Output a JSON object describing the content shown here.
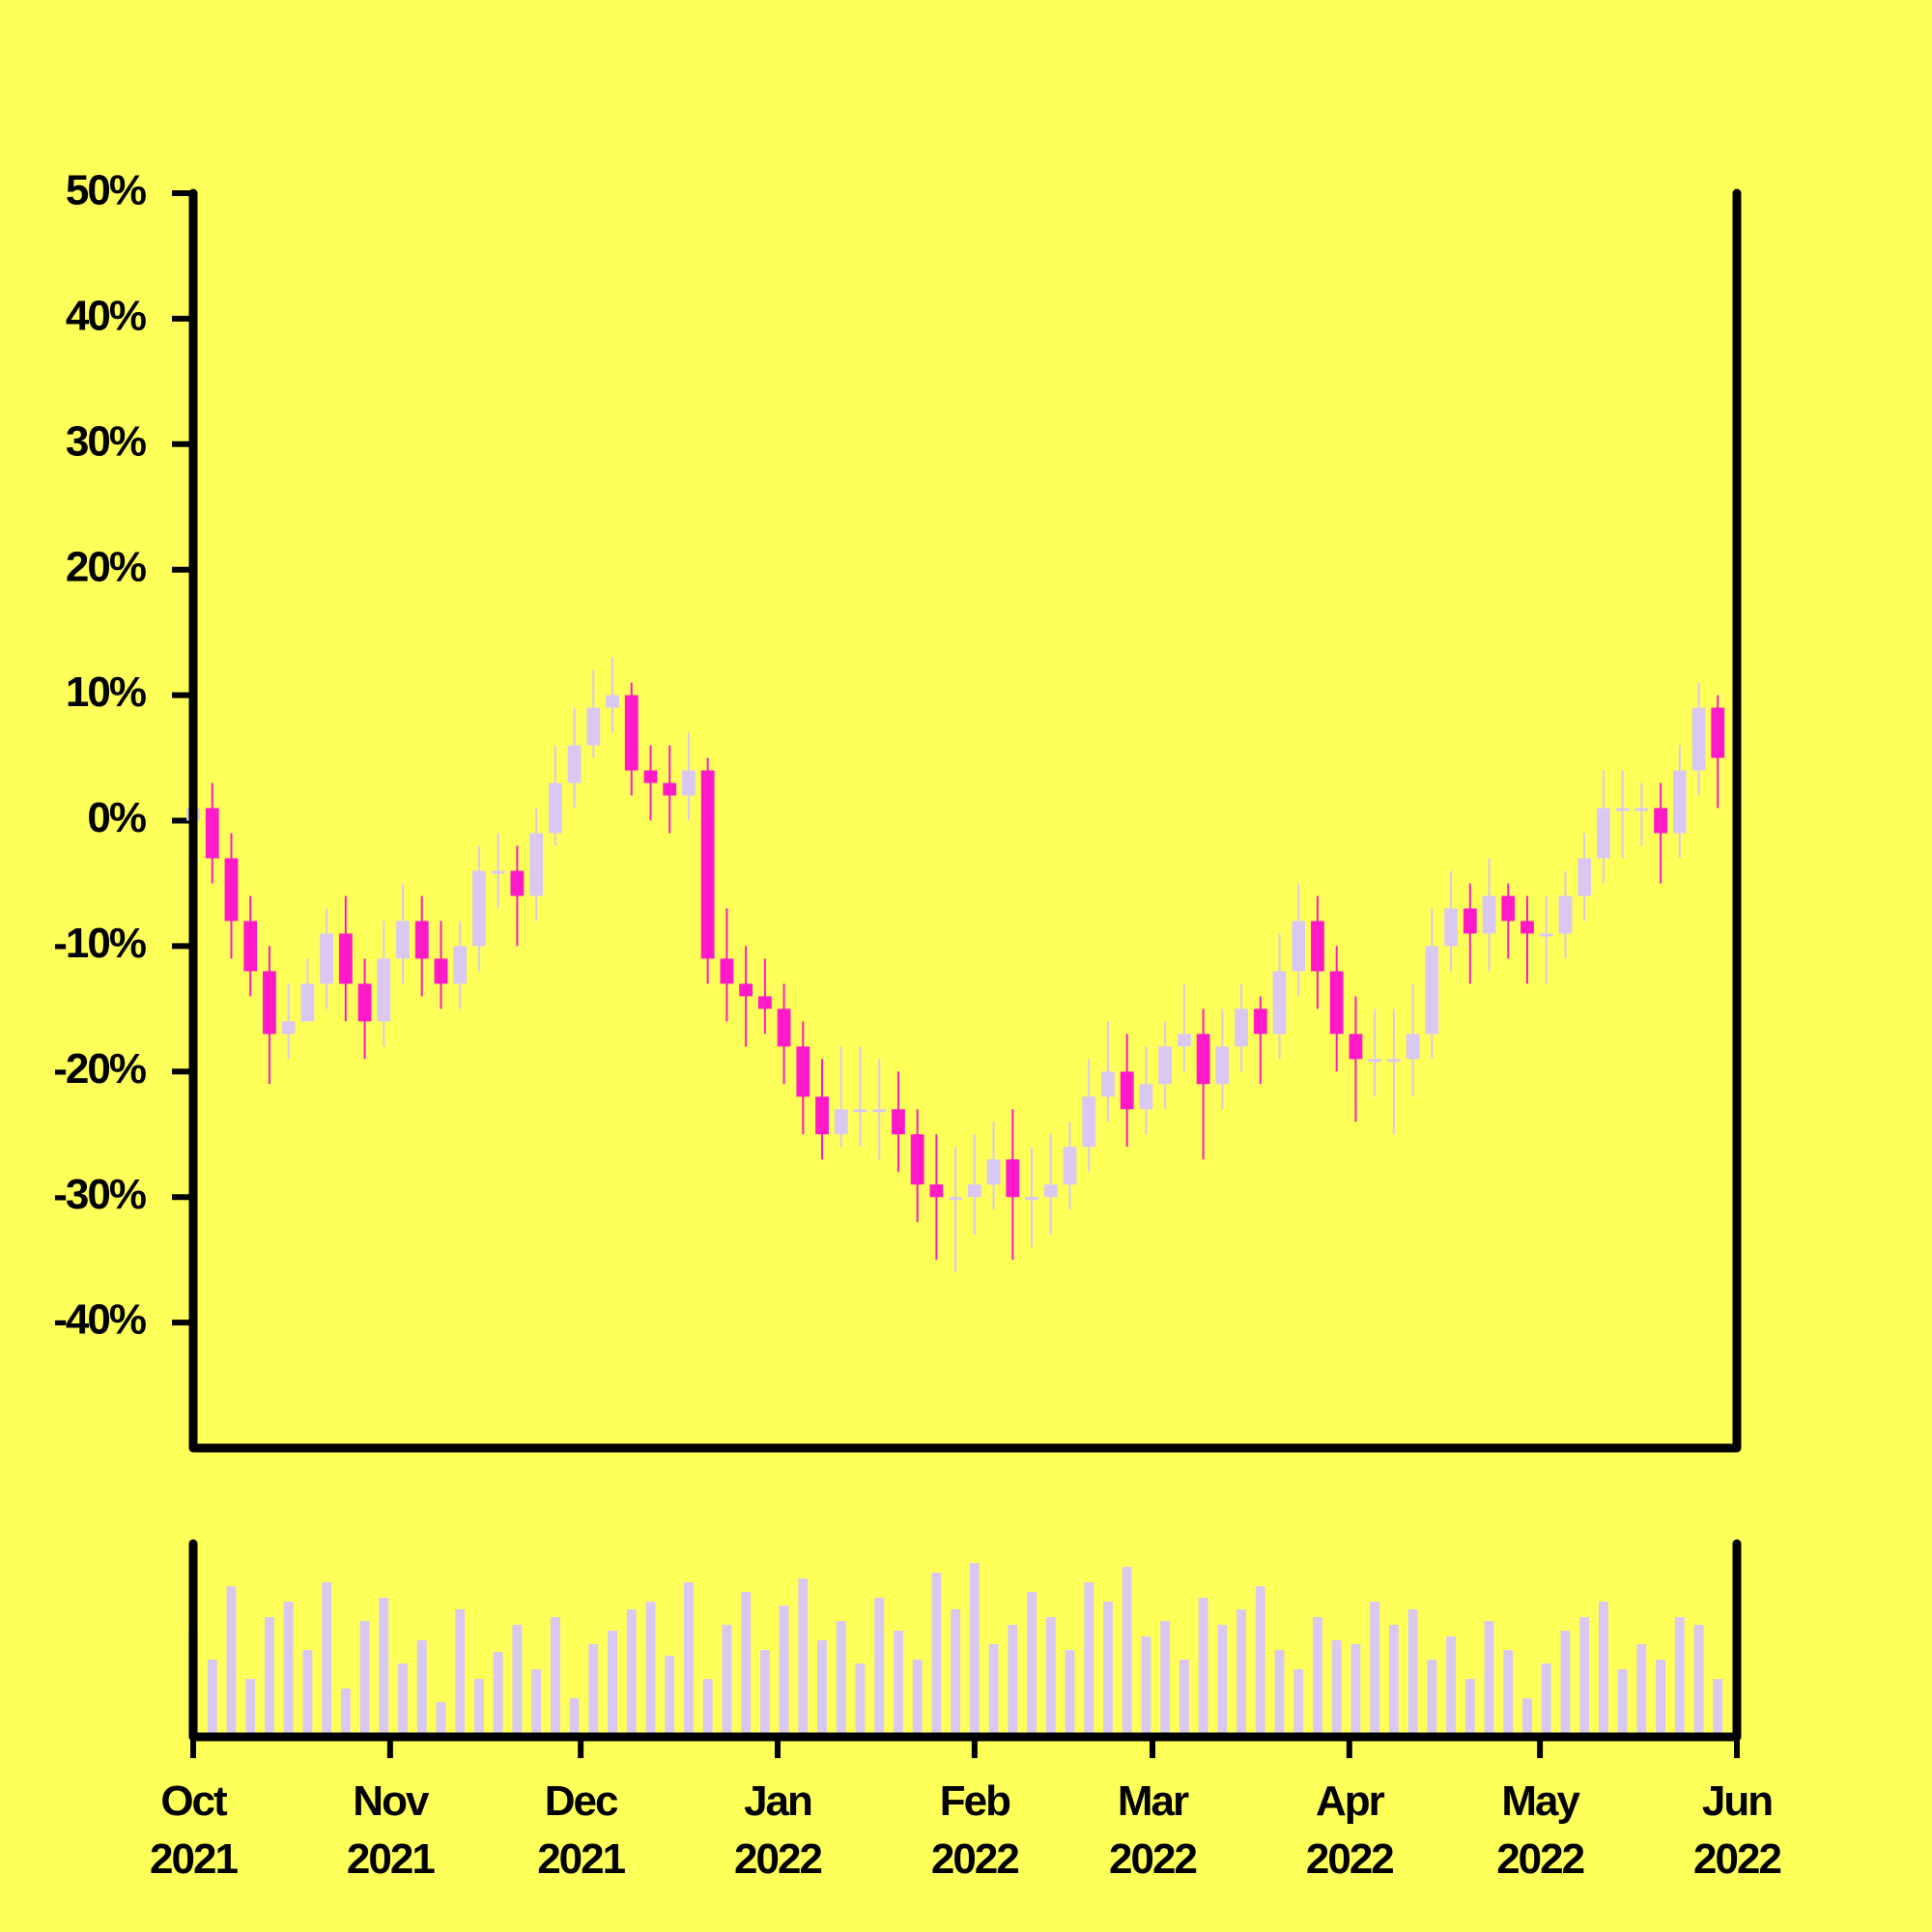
{
  "chart_data": {
    "type": "candlestick",
    "x": [
      0,
      3,
      6,
      9,
      12,
      15,
      18,
      21,
      24,
      27,
      30,
      33,
      36,
      39,
      42,
      45,
      48,
      51,
      54,
      57,
      60,
      63,
      66,
      69,
      72,
      75,
      78,
      81,
      84,
      87,
      90,
      93,
      96,
      99,
      102,
      105,
      108,
      111,
      114,
      117,
      120,
      123,
      126,
      129,
      132,
      135,
      138,
      141,
      144,
      147,
      150,
      153,
      156,
      159,
      162,
      165,
      168,
      171,
      174,
      177,
      180,
      183,
      186,
      189,
      192,
      195,
      198,
      201,
      204,
      207,
      210,
      213,
      216,
      219,
      222,
      225,
      228,
      231,
      234,
      237,
      240
    ],
    "open": [
      0,
      1,
      -3,
      -8,
      -12,
      -17,
      -16,
      -13,
      -9,
      -13,
      -16,
      -11,
      -8,
      -11,
      -13,
      -10,
      -4,
      -4,
      -6,
      -1,
      3,
      6,
      9,
      10,
      4,
      3,
      2,
      4,
      -11,
      -13,
      -14,
      -15,
      -18,
      -22,
      -25,
      -23,
      -23,
      -23,
      -25,
      -29,
      -30,
      -30,
      -29,
      -27,
      -30,
      -30,
      -29,
      -26,
      -22,
      -20,
      -23,
      -21,
      -18,
      -17,
      -21,
      -18,
      -15,
      -17,
      -12,
      -8,
      -12,
      -17,
      -19,
      -19,
      -19,
      -17,
      -10,
      -7,
      -9,
      -6,
      -8,
      -9,
      -9,
      -6,
      -3,
      1,
      1,
      1,
      -1,
      4,
      9
    ],
    "high": [
      4,
      3,
      -1,
      -6,
      -10,
      -13,
      -11,
      -7,
      -6,
      -11,
      -8,
      -5,
      -6,
      -8,
      -8,
      -2,
      -1,
      -2,
      1,
      6,
      9,
      12,
      13,
      11,
      6,
      6,
      7,
      5,
      -7,
      -10,
      -11,
      -13,
      -16,
      -19,
      -18,
      -18,
      -19,
      -20,
      -23,
      -25,
      -26,
      -25,
      -24,
      -23,
      -26,
      -25,
      -24,
      -19,
      -16,
      -17,
      -18,
      -16,
      -13,
      -15,
      -15,
      -13,
      -14,
      -9,
      -5,
      -6,
      -10,
      -14,
      -15,
      -15,
      -13,
      -7,
      -4,
      -5,
      -3,
      -5,
      -6,
      -6,
      -4,
      -1,
      4,
      4,
      3,
      3,
      6,
      11,
      10
    ],
    "low": [
      -2,
      -5,
      -11,
      -14,
      -21,
      -19,
      -16,
      -15,
      -16,
      -19,
      -18,
      -13,
      -14,
      -15,
      -15,
      -12,
      -7,
      -10,
      -8,
      -2,
      1,
      5,
      7,
      2,
      0,
      -1,
      0,
      -13,
      -16,
      -18,
      -17,
      -21,
      -25,
      -27,
      -26,
      -26,
      -27,
      -28,
      -32,
      -35,
      -36,
      -33,
      -31,
      -35,
      -34,
      -33,
      -31,
      -28,
      -24,
      -26,
      -25,
      -23,
      -20,
      -27,
      -23,
      -20,
      -21,
      -19,
      -14,
      -15,
      -20,
      -24,
      -22,
      -25,
      -22,
      -19,
      -12,
      -13,
      -12,
      -11,
      -13,
      -13,
      -11,
      -8,
      -5,
      -3,
      -2,
      -5,
      -3,
      2,
      1
    ],
    "close": [
      1,
      -3,
      -8,
      -12,
      -17,
      -16,
      -13,
      -9,
      -13,
      -16,
      -11,
      -8,
      -11,
      -13,
      -10,
      -4,
      -4,
      -6,
      -1,
      3,
      6,
      9,
      10,
      4,
      3,
      2,
      4,
      -11,
      -13,
      -14,
      -15,
      -18,
      -22,
      -25,
      -23,
      -23,
      -23,
      -25,
      -29,
      -30,
      -30,
      -29,
      -27,
      -30,
      -30,
      -29,
      -26,
      -22,
      -20,
      -23,
      -21,
      -18,
      -17,
      -21,
      -18,
      -15,
      -17,
      -12,
      -8,
      -12,
      -17,
      -19,
      -19,
      -19,
      -17,
      -10,
      -7,
      -9,
      -6,
      -8,
      -9,
      -9,
      -6,
      -3,
      1,
      1,
      1,
      -1,
      4,
      9,
      5
    ],
    "volume": [
      55,
      40,
      78,
      30,
      62,
      70,
      45,
      80,
      25,
      60,
      72,
      38,
      50,
      18,
      66,
      30,
      44,
      58,
      35,
      62,
      20,
      48,
      55,
      66,
      70,
      42,
      80,
      30,
      58,
      75,
      45,
      68,
      82,
      50,
      60,
      38,
      72,
      55,
      40,
      85,
      66,
      90,
      48,
      58,
      75,
      62,
      45,
      80,
      70,
      88,
      52,
      60,
      40,
      72,
      58,
      66,
      78,
      45,
      35,
      62,
      50,
      48,
      70,
      58,
      66,
      40,
      52,
      30,
      60,
      45,
      20,
      38,
      55,
      62,
      70,
      35,
      48,
      40,
      62,
      58,
      30
    ],
    "xlim": [
      0,
      243
    ],
    "ylim": [
      -50,
      50
    ],
    "vlim": [
      0,
      100
    ],
    "yticks": [
      {
        "value": -40,
        "label": "-40%"
      },
      {
        "value": -30,
        "label": "-30%"
      },
      {
        "value": -20,
        "label": "-20%"
      },
      {
        "value": -10,
        "label": "-10%"
      },
      {
        "value": 0,
        "label": "0%"
      },
      {
        "value": 10,
        "label": "10%"
      },
      {
        "value": 20,
        "label": "20%"
      },
      {
        "value": 30,
        "label": "30%"
      },
      {
        "value": 40,
        "label": "40%"
      },
      {
        "value": 50,
        "label": "50%"
      }
    ],
    "xticks": [
      {
        "value": 0,
        "label": "Oct 2021"
      },
      {
        "value": 31,
        "label": "Nov 2021"
      },
      {
        "value": 61,
        "label": "Dec 2021"
      },
      {
        "value": 92,
        "label": "Jan 2022"
      },
      {
        "value": 123,
        "label": "Feb 2022"
      },
      {
        "value": 151,
        "label": "Mar 2022"
      },
      {
        "value": 182,
        "label": "Apr 2022"
      },
      {
        "value": 212,
        "label": "May 2022"
      },
      {
        "value": 243,
        "label": "Jun 2022"
      }
    ],
    "up_color": "#d9c8f2",
    "down_color": "#ff19c8",
    "volume_color": "#d9c8f2"
  }
}
